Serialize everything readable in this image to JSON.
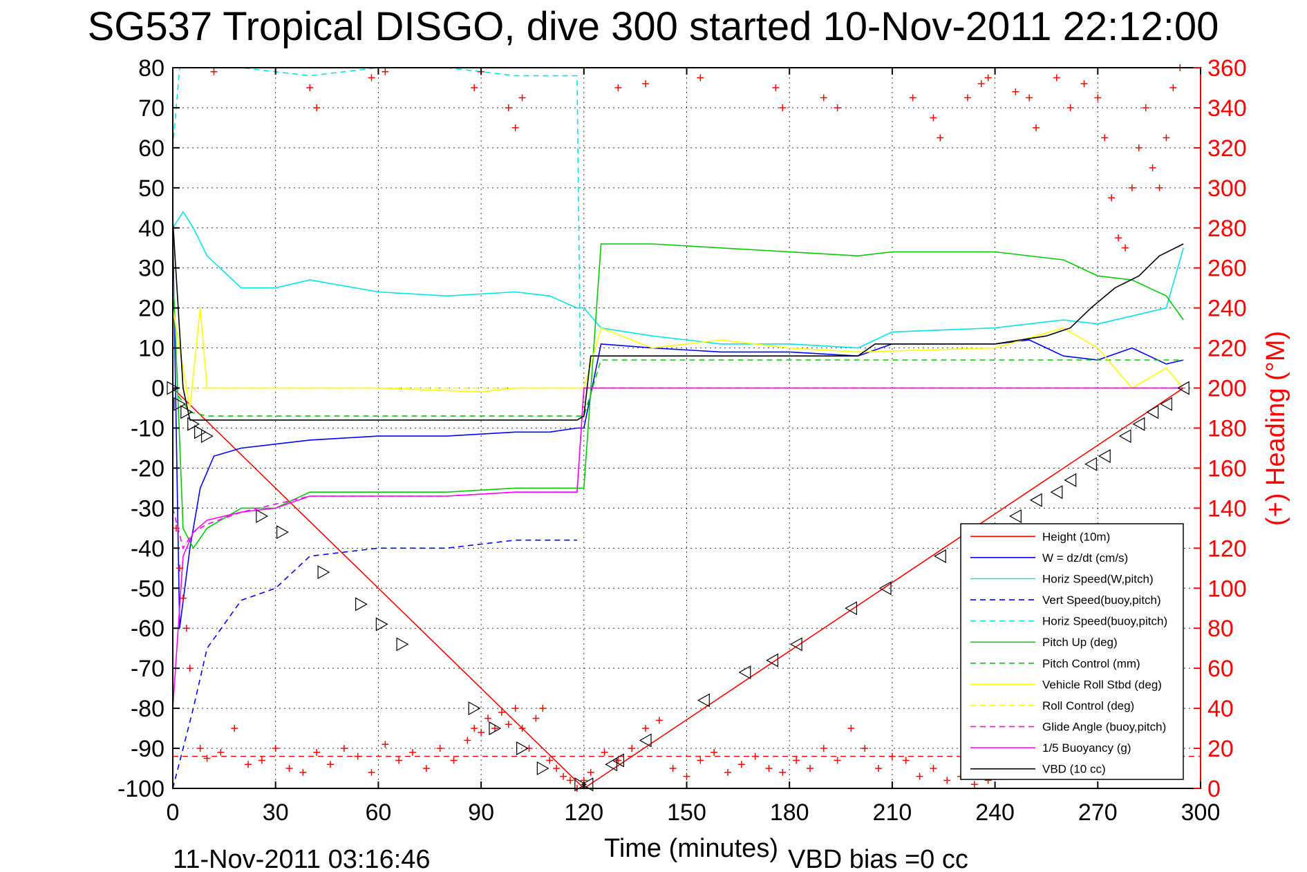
{
  "chart_data": {
    "type": "line",
    "title": "SG537 Tropical DISGO, dive 300 started 10-Nov-2011 22:12:00",
    "xlabel": "Time (minutes)",
    "ylabel_right": "(+) Heading (°M)",
    "xlim": [
      0,
      300
    ],
    "ylim": [
      -100,
      80
    ],
    "ylim_right": [
      0,
      360
    ],
    "x_ticks": [
      "0",
      "30",
      "60",
      "90",
      "120",
      "150",
      "180",
      "210",
      "240",
      "270",
      "300"
    ],
    "y_ticks": [
      "80",
      "70",
      "60",
      "50",
      "40",
      "30",
      "20",
      "10",
      "0",
      "-10",
      "-20",
      "-30",
      "-40",
      "-50",
      "-60",
      "-70",
      "-80",
      "-90",
      "-100"
    ],
    "y_ticks_right": [
      "360",
      "340",
      "320",
      "300",
      "280",
      "260",
      "240",
      "220",
      "200",
      "180",
      "160",
      "140",
      "120",
      "100",
      "80",
      "60",
      "40",
      "20",
      "0"
    ],
    "grid": true,
    "legend_position": "lower-right",
    "footer_left": "11-Nov-2011 03:16:46",
    "footer_right": "VBD bias =0 cc",
    "series": [
      {
        "name": "Height (10m)",
        "color": "#ff0000",
        "dash": "solid",
        "x": [
          0,
          120,
          295
        ],
        "y": [
          0,
          -100,
          0
        ]
      },
      {
        "name": "W = dz/dt (cm/s)",
        "color": "#0000ff",
        "dash": "solid",
        "x": [
          0,
          2,
          5,
          8,
          12,
          20,
          30,
          40,
          60,
          80,
          100,
          110,
          118,
          120,
          125,
          140,
          160,
          180,
          200,
          210,
          240,
          250,
          260,
          270,
          280,
          290,
          295
        ],
        "y": [
          40,
          -60,
          -40,
          -25,
          -17,
          -15,
          -14,
          -13,
          -12,
          -12,
          -11,
          -11,
          -10,
          -10,
          11,
          10,
          9,
          9,
          8,
          11,
          11,
          12,
          8,
          7,
          10,
          6,
          7
        ]
      },
      {
        "name": "Horiz Speed(W,pitch)",
        "color": "#00e5e5",
        "dash": "solid",
        "x": [
          0,
          3,
          6,
          10,
          20,
          30,
          40,
          60,
          80,
          100,
          110,
          118,
          120,
          125,
          140,
          160,
          180,
          200,
          210,
          240,
          260,
          270,
          280,
          290,
          295
        ],
        "y": [
          40,
          44,
          40,
          33,
          25,
          25,
          27,
          24,
          23,
          24,
          23,
          20,
          20,
          15,
          13,
          11,
          11,
          10,
          14,
          15,
          17,
          16,
          18,
          20,
          35
        ]
      },
      {
        "name": "Vert Speed(buoy,pitch)",
        "color": "#0000ff",
        "dash": "dashed",
        "x": [
          0,
          3,
          6,
          10,
          20,
          30,
          40,
          60,
          80,
          100,
          110,
          118
        ],
        "y": [
          -100,
          -90,
          -80,
          -65,
          -53,
          -50,
          -42,
          -40,
          -40,
          -38,
          -38,
          -38
        ]
      },
      {
        "name": "Horiz Speed(buoy,pitch)",
        "color": "#00e5e5",
        "dash": "dashed",
        "x": [
          0,
          2,
          5,
          10,
          20,
          40,
          60,
          80,
          100,
          118,
          119
        ],
        "y": [
          60,
          80,
          80,
          80,
          80,
          78,
          80,
          80,
          78,
          78,
          5
        ]
      },
      {
        "name": "Pitch Up (deg)",
        "color": "#00cc00",
        "dash": "solid",
        "x": [
          0,
          3,
          6,
          10,
          20,
          30,
          40,
          60,
          80,
          100,
          110,
          118,
          120,
          125,
          140,
          160,
          180,
          200,
          210,
          240,
          260,
          270,
          280,
          290,
          295
        ],
        "y": [
          30,
          -35,
          -40,
          -35,
          -30,
          -30,
          -26,
          -26,
          -26,
          -25,
          -25,
          -25,
          -25,
          36,
          36,
          35,
          34,
          33,
          34,
          34,
          32,
          28,
          27,
          23,
          17
        ]
      },
      {
        "name": "Pitch Control (mm)",
        "color": "#00cc00",
        "dash": "dashed",
        "x": [
          0,
          5,
          10,
          30,
          60,
          90,
          118,
          120,
          125,
          200,
          295
        ],
        "y": [
          0,
          -6,
          -7,
          -7,
          -7,
          -7,
          -7,
          -7,
          7,
          7,
          7
        ]
      },
      {
        "name": "Vehicle Roll Stbd (deg)",
        "color": "#ffff00",
        "dash": "solid",
        "x": [
          0,
          2,
          5,
          8,
          10,
          20,
          60,
          90,
          100,
          110,
          118,
          120,
          125,
          140,
          160,
          180,
          200,
          240,
          260,
          270,
          280,
          290,
          295
        ],
        "y": [
          20,
          10,
          -5,
          20,
          0,
          0,
          0,
          -1,
          0,
          0,
          0,
          0,
          15,
          10,
          12,
          10,
          9,
          10,
          15,
          10,
          0,
          5,
          0
        ]
      },
      {
        "name": "Roll Control (deg)",
        "color": "#ffff00",
        "dash": "dashed",
        "x": [
          0,
          10,
          118,
          120,
          295
        ],
        "y": [
          0,
          0,
          0,
          0,
          0
        ]
      },
      {
        "name": "Glide Angle (buoy,pitch)",
        "color": "#ff00ff",
        "dash": "dashed",
        "x": [
          0,
          3,
          6,
          10,
          20,
          30,
          40,
          60,
          80,
          100,
          118,
          120,
          295
        ],
        "y": [
          -30,
          -40,
          -36,
          -34,
          -31,
          -29,
          -27,
          -27,
          -27,
          -26,
          -26,
          0,
          0
        ]
      },
      {
        "name": "1/5 Buoyancy (g)",
        "color": "#ff00ff",
        "dash": "solid",
        "x": [
          0,
          3,
          6,
          10,
          20,
          30,
          40,
          60,
          80,
          100,
          118,
          120,
          295
        ],
        "y": [
          -80,
          -42,
          -36,
          -33,
          -31,
          -30,
          -27,
          -27,
          -27,
          -26,
          -26,
          0,
          0
        ]
      },
      {
        "name": "VBD (10 cc)",
        "color": "#000000",
        "dash": "solid",
        "x": [
          0,
          3,
          5,
          118,
          120,
          122,
          200,
          205,
          240,
          255,
          262,
          268,
          275,
          282,
          288,
          295
        ],
        "y": [
          42,
          0,
          -8,
          -8,
          -7,
          8,
          8,
          11,
          11,
          13,
          15,
          20,
          25,
          28,
          33,
          36
        ]
      }
    ],
    "heading_marks": {
      "name": "(+) Heading (°M)",
      "color": "#ff0000",
      "x": [
        1,
        2,
        3,
        4,
        5,
        8,
        10,
        14,
        18,
        22,
        26,
        30,
        34,
        38,
        42,
        46,
        50,
        54,
        58,
        62,
        66,
        70,
        74,
        78,
        82,
        86,
        88,
        90,
        92,
        94,
        96,
        98,
        100,
        102,
        104,
        106,
        108,
        110,
        112,
        114,
        116,
        118,
        120,
        122,
        126,
        130,
        134,
        138,
        142,
        146,
        150,
        154,
        158,
        162,
        166,
        170,
        174,
        178,
        182,
        186,
        190,
        194,
        198,
        202,
        206,
        210,
        214,
        218,
        222,
        226,
        230,
        234,
        238,
        242,
        12,
        40,
        42,
        58,
        62,
        88,
        90,
        98,
        100,
        102,
        130,
        138,
        154,
        176,
        178,
        190,
        194,
        216,
        222,
        224,
        232,
        236,
        238,
        246,
        250,
        252,
        258,
        262,
        266,
        270,
        272,
        274,
        276,
        278,
        280,
        282,
        284,
        286,
        288,
        290,
        292,
        294
      ],
      "y": [
        130,
        110,
        95,
        80,
        60,
        20,
        15,
        18,
        30,
        12,
        14,
        20,
        10,
        8,
        18,
        12,
        20,
        16,
        8,
        22,
        14,
        18,
        10,
        20,
        14,
        24,
        30,
        28,
        35,
        30,
        38,
        32,
        40,
        30,
        20,
        35,
        40,
        14,
        10,
        6,
        4,
        0,
        4,
        8,
        18,
        14,
        20,
        30,
        34,
        10,
        6,
        14,
        18,
        8,
        12,
        16,
        10,
        8,
        14,
        10,
        20,
        14,
        30,
        20,
        10,
        16,
        14,
        6,
        10,
        4,
        6,
        2,
        4,
        6,
        358,
        350,
        340,
        355,
        358,
        350,
        358,
        340,
        330,
        345,
        350,
        352,
        355,
        350,
        340,
        345,
        340,
        345,
        335,
        325,
        345,
        352,
        355,
        348,
        345,
        330,
        355,
        340,
        352,
        345,
        325,
        295,
        275,
        270,
        300,
        320,
        340,
        310,
        300,
        325,
        350,
        360
      ]
    },
    "pitch_markers": {
      "color": "#000000",
      "x": [
        0,
        2,
        4,
        6,
        8,
        10,
        26,
        32,
        44,
        55,
        61,
        67,
        88,
        94,
        102,
        108,
        119,
        121,
        128,
        130,
        138,
        155,
        167,
        175,
        182,
        198,
        208,
        224,
        232,
        246,
        252,
        258,
        262,
        268,
        272,
        278,
        282,
        286,
        290,
        295
      ],
      "y": [
        0,
        -4,
        -6,
        -9,
        -11,
        -12,
        -32,
        -36,
        -46,
        -54,
        -59,
        -64,
        -80,
        -85,
        -90,
        -95,
        -99,
        -99,
        -94,
        -93,
        -88,
        -78,
        -71,
        -68,
        -64,
        -55,
        -50,
        -42,
        -39,
        -32,
        -28,
        -26,
        -23,
        -19,
        -17,
        -12,
        -9,
        -6,
        -4,
        0
      ]
    },
    "heading_reference_line": {
      "color": "#ff0000",
      "dash": "dashed",
      "y_right": 16
    }
  }
}
